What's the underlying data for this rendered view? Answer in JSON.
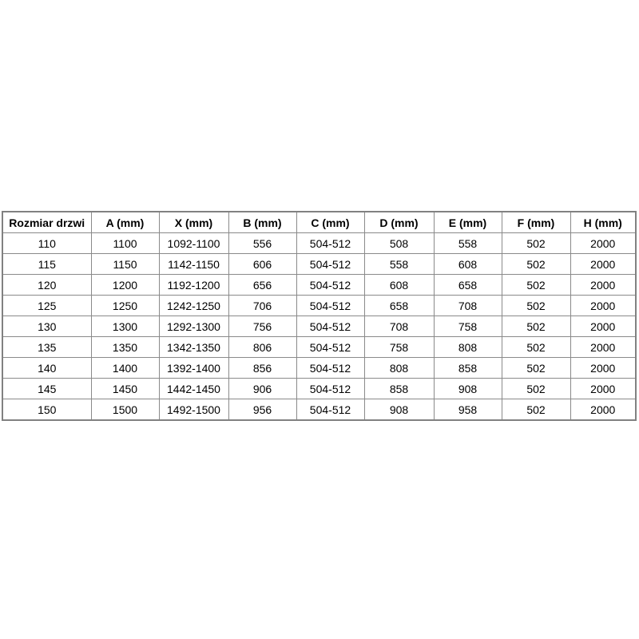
{
  "table": {
    "name": "door-size-specifications",
    "columns": [
      "Rozmiar drzwi",
      "A (mm)",
      "X (mm)",
      "B (mm)",
      "C (mm)",
      "D (mm)",
      "E (mm)",
      "F (mm)",
      "H (mm)"
    ],
    "rows": [
      [
        "110",
        "1100",
        "1092-1100",
        "556",
        "504-512",
        "508",
        "558",
        "502",
        "2000"
      ],
      [
        "115",
        "1150",
        "1142-1150",
        "606",
        "504-512",
        "558",
        "608",
        "502",
        "2000"
      ],
      [
        "120",
        "1200",
        "1192-1200",
        "656",
        "504-512",
        "608",
        "658",
        "502",
        "2000"
      ],
      [
        "125",
        "1250",
        "1242-1250",
        "706",
        "504-512",
        "658",
        "708",
        "502",
        "2000"
      ],
      [
        "130",
        "1300",
        "1292-1300",
        "756",
        "504-512",
        "708",
        "758",
        "502",
        "2000"
      ],
      [
        "135",
        "1350",
        "1342-1350",
        "806",
        "504-512",
        "758",
        "808",
        "502",
        "2000"
      ],
      [
        "140",
        "1400",
        "1392-1400",
        "856",
        "504-512",
        "808",
        "858",
        "502",
        "2000"
      ],
      [
        "145",
        "1450",
        "1442-1450",
        "906",
        "504-512",
        "858",
        "908",
        "502",
        "2000"
      ],
      [
        "150",
        "1500",
        "1492-1500",
        "956",
        "504-512",
        "908",
        "958",
        "502",
        "2000"
      ]
    ]
  },
  "colors": {
    "background": "#ffffff",
    "border_outer": "#818181",
    "border_inner": "#8a8a8a",
    "text": "#000000"
  }
}
